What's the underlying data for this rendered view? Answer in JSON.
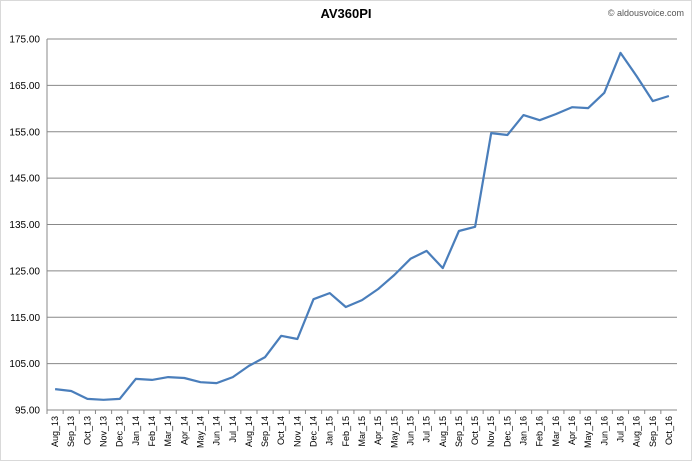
{
  "chart_data": {
    "type": "line",
    "title": "AV360PI",
    "source": "© aldousvoice.com",
    "categories": [
      "Aug_13",
      "Sep_13",
      "Oct_13",
      "Nov_13",
      "Dec_13",
      "Jan_14",
      "Feb_14",
      "Mar_14",
      "Apr_14",
      "May_14",
      "Jun_14",
      "Jul_14",
      "Aug_14",
      "Sep_14",
      "Oct_14",
      "Nov_14",
      "Dec_14",
      "Jan_15",
      "Feb_15",
      "Mar_15",
      "Apr_15",
      "May_15",
      "Jun_15",
      "Jul_15",
      "Aug_15",
      "Sep_15",
      "Oct_15",
      "Nov_15",
      "Dec_15",
      "Jan_16",
      "Feb_16",
      "Mar_16",
      "Apr_16",
      "May_16",
      "Jun_16",
      "Jul_16",
      "Aug_16",
      "Sep_16",
      "Oct_16"
    ],
    "values": [
      99.5,
      99.1,
      97.4,
      97.2,
      97.4,
      101.7,
      101.5,
      102.1,
      101.9,
      101.0,
      100.8,
      102.1,
      104.5,
      106.4,
      111.0,
      110.3,
      118.9,
      120.2,
      117.2,
      118.7,
      121.1,
      124.1,
      127.6,
      129.3,
      125.6,
      133.6,
      134.5,
      154.7,
      154.3,
      158.6,
      157.5,
      158.8,
      160.3,
      160.1,
      163.4,
      172.0,
      167.0,
      161.6,
      162.7
    ],
    "color": "#4a7ebb",
    "ylim": [
      95,
      175
    ],
    "yticks": [
      {
        "value": 95,
        "label": "95.00"
      },
      {
        "value": 105,
        "label": "105.00"
      },
      {
        "value": 115,
        "label": "115.00"
      },
      {
        "value": 125,
        "label": "125.00"
      },
      {
        "value": 135,
        "label": "135.00"
      },
      {
        "value": 145,
        "label": "145.00"
      },
      {
        "value": 155,
        "label": "155.00"
      },
      {
        "value": 165,
        "label": "165.00"
      },
      {
        "value": 175,
        "label": "175.00"
      }
    ],
    "grid": true
  }
}
